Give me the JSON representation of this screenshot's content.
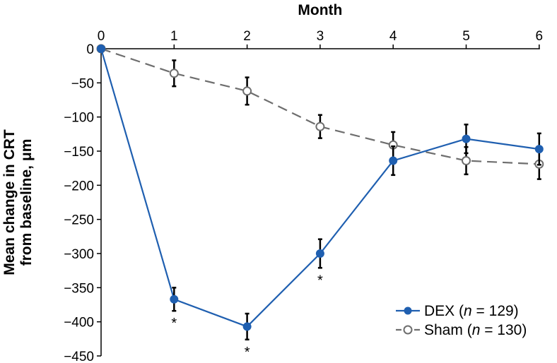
{
  "chart_data": {
    "type": "line",
    "xlabel": "Month",
    "ylabel_line1": "Mean change in CRT",
    "ylabel_line2": "from baseline, μm",
    "x": [
      0,
      1,
      2,
      3,
      4,
      5,
      6
    ],
    "xlim": [
      0,
      6
    ],
    "ylim": [
      -450,
      0
    ],
    "y_ticks": [
      0,
      -50,
      -100,
      -150,
      -200,
      -250,
      -300,
      -350,
      -400,
      -450
    ],
    "y_tick_labels": [
      "0",
      "−50",
      "−100",
      "−150",
      "−200",
      "−250",
      "−300",
      "−350",
      "−400",
      "−450"
    ],
    "x_tick_labels": [
      "0",
      "1",
      "2",
      "3",
      "4",
      "5",
      "6"
    ],
    "x_axis_position": "top",
    "grid": false,
    "legend_position": "bottom-right",
    "series": [
      {
        "name": "DEX",
        "n_label": "n",
        "n_value": "= 129)",
        "legend_prefix": "DEX (",
        "color": "#1f5fb0",
        "marker": "filled-circle",
        "line_style": "solid",
        "values": [
          0,
          -367,
          -407,
          -300,
          -164,
          -132,
          -147
        ],
        "error": [
          0,
          17,
          19,
          21,
          21,
          21,
          23
        ],
        "significance": [
          "",
          "*",
          "*",
          "*",
          "",
          "",
          ""
        ]
      },
      {
        "name": "Sham",
        "n_label": "n",
        "n_value": "= 130)",
        "legend_prefix": "Sham (",
        "color": "#6e6e6e",
        "marker": "open-circle",
        "line_style": "dashed",
        "values": [
          0,
          -36,
          -62,
          -114,
          -141,
          -164,
          -169
        ],
        "error": [
          0,
          19,
          20,
          17,
          19,
          20,
          22
        ],
        "significance": [
          "",
          "",
          "",
          "",
          "",
          "",
          ""
        ]
      }
    ]
  }
}
